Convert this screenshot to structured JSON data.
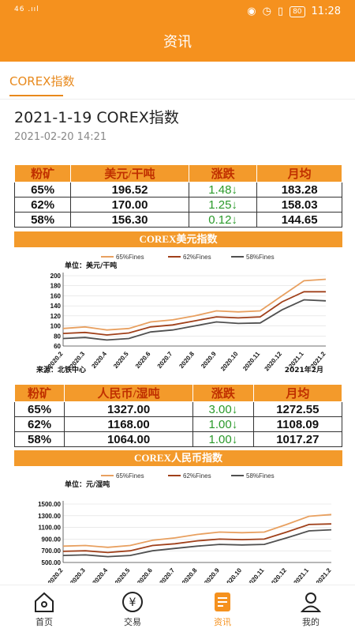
{
  "status": {
    "signal": "46 .ııl",
    "time": "11:28",
    "battery": "80"
  },
  "header": {
    "title": "资讯"
  },
  "subtab": {
    "label": "COREX指数"
  },
  "article": {
    "title": "2021-1-19 COREX指数",
    "date": "2021-02-20 14:21"
  },
  "table1": {
    "headers": [
      "粉矿",
      "美元/干吨",
      "涨跌",
      "月均"
    ],
    "rows": [
      [
        "65%",
        "196.52",
        "1.48↓",
        "183.28"
      ],
      [
        "62%",
        "170.00",
        "1.25↓",
        "158.03"
      ],
      [
        "58%",
        "156.30",
        "0.12↓",
        "144.65"
      ]
    ]
  },
  "chart1": {
    "title": "COREX美元指数",
    "unit": "单位：美元/干吨",
    "source": "来源：北铁中心",
    "period": "2021年2月",
    "yticks": [
      "200",
      "180",
      "160",
      "140",
      "120",
      "100",
      "80",
      "60"
    ],
    "xticks": [
      "2020.2",
      "2020.3",
      "2020.4",
      "2020.5",
      "2020.6",
      "2020.7",
      "2020.8",
      "2020.9",
      "2020.10",
      "2020.11",
      "2020.12",
      "2021.1",
      "2021.2"
    ],
    "legend": [
      "65%Fines",
      "62%Fines",
      "58%Fines"
    ]
  },
  "table2": {
    "headers": [
      "粉矿",
      "人民币/湿吨",
      "涨跌",
      "月均"
    ],
    "rows": [
      [
        "65%",
        "1327.00",
        "3.00↓",
        "1272.55"
      ],
      [
        "62%",
        "1168.00",
        "1.00↓",
        "1108.09"
      ],
      [
        "58%",
        "1064.00",
        "1.00↓",
        "1017.27"
      ]
    ]
  },
  "chart2": {
    "title": "COREX人民币指数",
    "unit": "单位：元/湿吨",
    "yticks": [
      "1500.00",
      "1300.00",
      "1100.00",
      "900.00",
      "700.00",
      "500.00"
    ],
    "xticks": [
      "2020.2",
      "2020.3",
      "2020.4",
      "2020.5",
      "2020.6",
      "2020.7",
      "2020.8",
      "2020.9",
      "2020.10",
      "2020.11",
      "2020.12",
      "2021.1",
      "2021.2"
    ],
    "legend": [
      "65%Fines",
      "62%Fines",
      "58%Fines"
    ]
  },
  "chart_data": [
    {
      "type": "line",
      "title": "COREX美元指数",
      "ylabel": "单位：美元/干吨",
      "ylim": [
        60,
        200
      ],
      "x": [
        "2020.2",
        "2020.3",
        "2020.4",
        "2020.5",
        "2020.6",
        "2020.7",
        "2020.8",
        "2020.9",
        "2020.10",
        "2020.11",
        "2020.12",
        "2021.1",
        "2021.2"
      ],
      "series": [
        {
          "name": "65%Fines",
          "values": [
            95,
            98,
            92,
            95,
            108,
            112,
            120,
            130,
            128,
            130,
            160,
            190,
            193
          ]
        },
        {
          "name": "62%Fines",
          "values": [
            85,
            87,
            82,
            86,
            98,
            102,
            110,
            118,
            116,
            118,
            148,
            168,
            168
          ]
        },
        {
          "name": "58%Fines",
          "values": [
            75,
            77,
            72,
            75,
            88,
            92,
            100,
            108,
            105,
            106,
            132,
            152,
            150
          ]
        }
      ],
      "colors": [
        "#e8a060",
        "#a0401a",
        "#505050"
      ]
    },
    {
      "type": "line",
      "title": "COREX人民币指数",
      "ylabel": "单位：元/湿吨",
      "ylim": [
        500,
        1500
      ],
      "x": [
        "2020.2",
        "2020.3",
        "2020.4",
        "2020.5",
        "2020.6",
        "2020.7",
        "2020.8",
        "2020.9",
        "2020.10",
        "2020.11",
        "2020.12",
        "2021.1",
        "2021.2"
      ],
      "series": [
        {
          "name": "65%Fines",
          "values": [
            780,
            790,
            760,
            790,
            880,
            920,
            980,
            1020,
            1010,
            1020,
            1150,
            1290,
            1320
          ]
        },
        {
          "name": "62%Fines",
          "values": [
            690,
            700,
            670,
            700,
            790,
            820,
            870,
            900,
            890,
            900,
            1020,
            1150,
            1160
          ]
        },
        {
          "name": "58%Fines",
          "values": [
            620,
            630,
            600,
            620,
            700,
            740,
            780,
            810,
            800,
            810,
            920,
            1040,
            1060
          ]
        }
      ],
      "colors": [
        "#e8a060",
        "#a0401a",
        "#505050"
      ]
    }
  ],
  "tabbar": {
    "items": [
      "首页",
      "交易",
      "资讯",
      "我的"
    ]
  }
}
